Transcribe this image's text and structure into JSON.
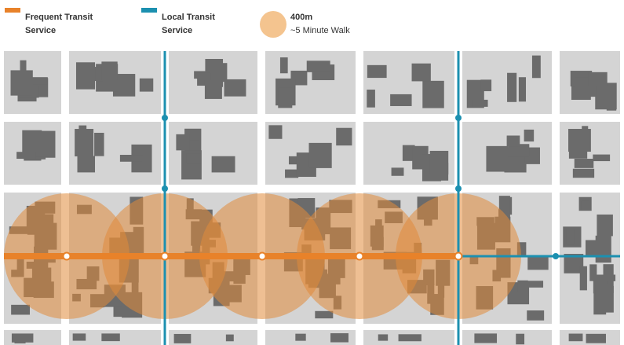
{
  "legend": [
    {
      "label": "Frequent Transit Service"
    },
    {
      "label": "Local Transit Service"
    },
    {
      "label": "400m",
      "sublabel": "~5 Minute Walk"
    }
  ]
}
